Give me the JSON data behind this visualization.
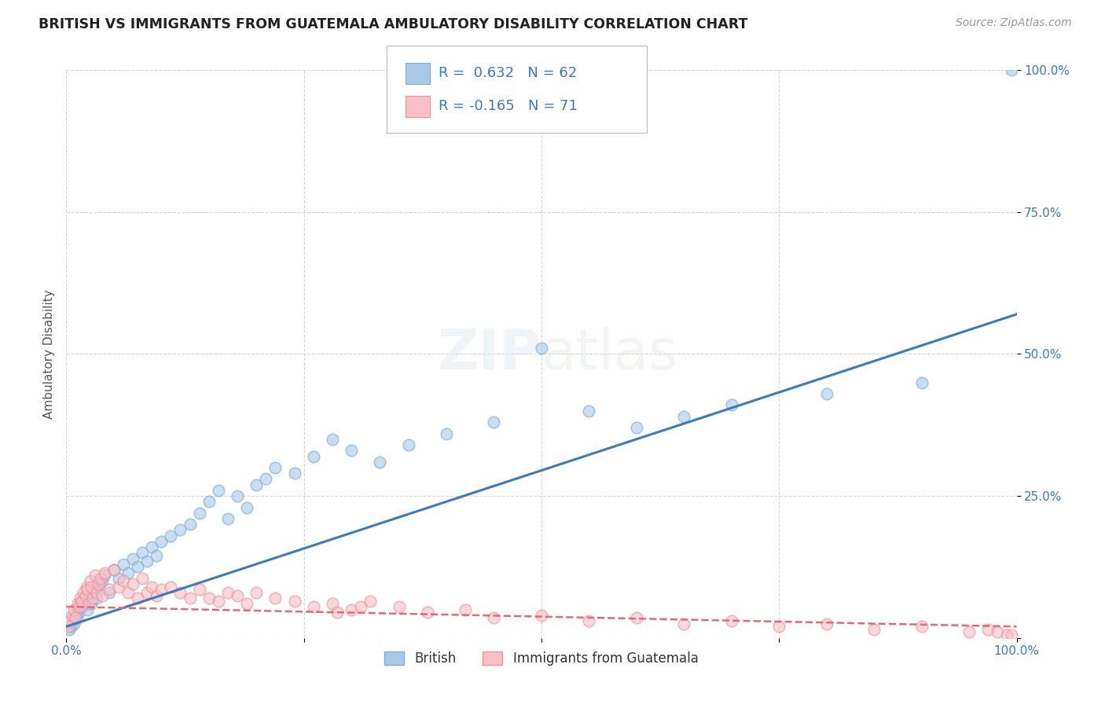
{
  "title": "BRITISH VS IMMIGRANTS FROM GUATEMALA AMBULATORY DISABILITY CORRELATION CHART",
  "source": "Source: ZipAtlas.com",
  "ylabel": "Ambulatory Disability",
  "british_R": 0.632,
  "british_N": 62,
  "guatemala_R": -0.165,
  "guatemala_N": 71,
  "blue_color": "#a8c8e8",
  "blue_edge_color": "#7aadda",
  "blue_line_color": "#3a7bbf",
  "pink_color": "#f8c0c8",
  "pink_edge_color": "#f0909a",
  "pink_line_color": "#e86878",
  "background_color": "#ffffff",
  "grid_color": "#cccccc",
  "british_scatter_x": [
    0.3,
    0.5,
    0.7,
    0.8,
    1.0,
    1.1,
    1.2,
    1.3,
    1.5,
    1.6,
    1.8,
    2.0,
    2.2,
    2.3,
    2.5,
    2.6,
    2.8,
    3.0,
    3.2,
    3.5,
    3.8,
    4.0,
    4.5,
    5.0,
    5.5,
    6.0,
    6.5,
    7.0,
    7.5,
    8.0,
    8.5,
    9.0,
    9.5,
    10.0,
    11.0,
    12.0,
    13.0,
    14.0,
    15.0,
    16.0,
    17.0,
    18.0,
    19.0,
    20.0,
    21.0,
    22.0,
    24.0,
    26.0,
    28.0,
    30.0,
    33.0,
    36.0,
    40.0,
    45.0,
    50.0,
    55.0,
    60.0,
    65.0,
    70.0,
    80.0,
    90.0,
    99.5
  ],
  "british_scatter_y": [
    1.5,
    2.0,
    3.0,
    2.5,
    4.0,
    3.5,
    5.0,
    4.5,
    6.0,
    5.5,
    7.0,
    6.5,
    5.0,
    7.5,
    8.0,
    6.0,
    9.0,
    8.5,
    7.0,
    9.5,
    10.0,
    11.0,
    8.0,
    12.0,
    10.5,
    13.0,
    11.5,
    14.0,
    12.5,
    15.0,
    13.5,
    16.0,
    14.5,
    17.0,
    18.0,
    19.0,
    20.0,
    22.0,
    24.0,
    26.0,
    21.0,
    25.0,
    23.0,
    27.0,
    28.0,
    30.0,
    29.0,
    32.0,
    35.0,
    33.0,
    31.0,
    34.0,
    36.0,
    38.0,
    51.0,
    40.0,
    37.0,
    39.0,
    41.0,
    43.0,
    45.0,
    100.0
  ],
  "guatemala_scatter_x": [
    0.2,
    0.4,
    0.6,
    0.8,
    1.0,
    1.2,
    1.4,
    1.5,
    1.6,
    1.8,
    2.0,
    2.1,
    2.2,
    2.4,
    2.5,
    2.6,
    2.8,
    3.0,
    3.2,
    3.4,
    3.6,
    3.8,
    4.0,
    4.5,
    5.0,
    5.5,
    6.0,
    6.5,
    7.0,
    7.5,
    8.0,
    8.5,
    9.0,
    9.5,
    10.0,
    11.0,
    12.0,
    13.0,
    14.0,
    15.0,
    16.0,
    17.0,
    18.0,
    19.0,
    20.0,
    22.0,
    24.0,
    26.0,
    28.0,
    30.0,
    32.0,
    35.0,
    38.0,
    42.0,
    45.0,
    50.0,
    55.0,
    60.0,
    65.0,
    70.0,
    75.0,
    80.0,
    85.0,
    90.0,
    95.0,
    97.0,
    98.0,
    99.0,
    99.5,
    28.5,
    31.0
  ],
  "guatemala_scatter_y": [
    2.0,
    3.0,
    4.0,
    5.0,
    3.5,
    6.0,
    5.5,
    7.0,
    6.5,
    8.0,
    7.5,
    9.0,
    8.5,
    6.0,
    10.0,
    9.0,
    7.0,
    11.0,
    8.0,
    9.5,
    10.5,
    7.5,
    11.5,
    8.5,
    12.0,
    9.0,
    10.0,
    8.0,
    9.5,
    7.0,
    10.5,
    8.0,
    9.0,
    7.5,
    8.5,
    9.0,
    8.0,
    7.0,
    8.5,
    7.0,
    6.5,
    8.0,
    7.5,
    6.0,
    8.0,
    7.0,
    6.5,
    5.5,
    6.0,
    5.0,
    6.5,
    5.5,
    4.5,
    5.0,
    3.5,
    4.0,
    3.0,
    3.5,
    2.5,
    3.0,
    2.0,
    2.5,
    1.5,
    2.0,
    1.0,
    1.5,
    1.0,
    0.5,
    0.5,
    4.5,
    5.5
  ]
}
